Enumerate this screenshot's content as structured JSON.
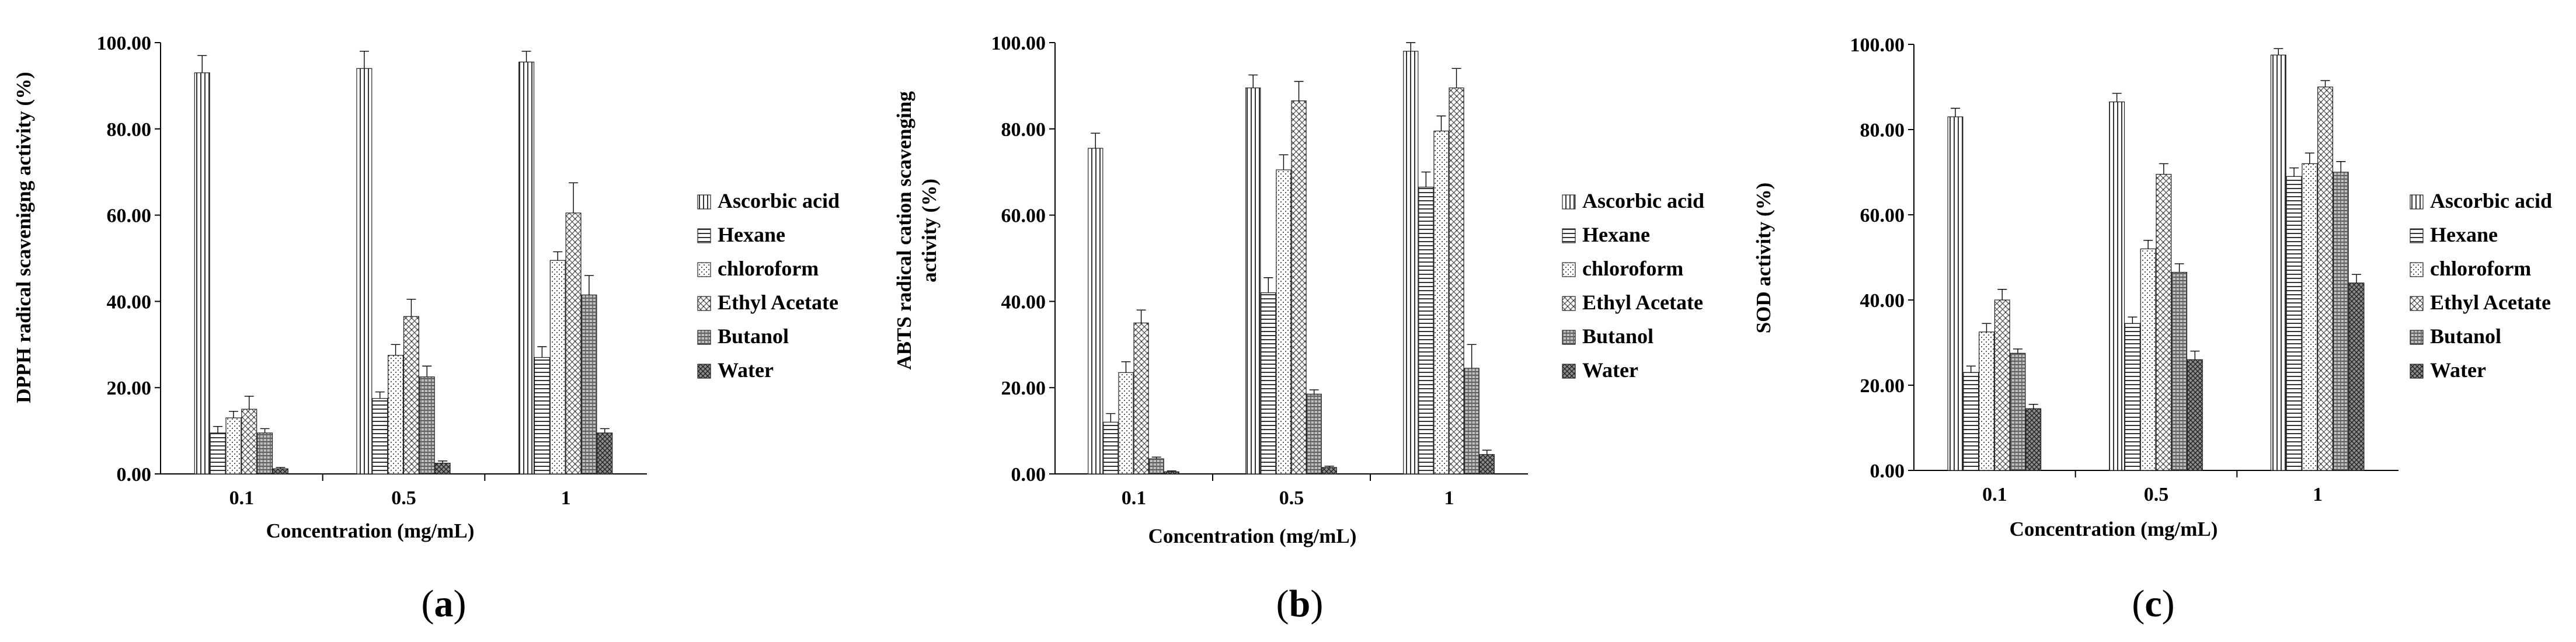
{
  "chart_data": [
    {
      "type": "bar",
      "panel": "a",
      "caption_letter": "a",
      "ylabel": "DPPH radical  scavenigng activity (%)",
      "xlabel": "Concentration (mg/mL)",
      "categories": [
        "0.1",
        "0.5",
        "1"
      ],
      "ylim": [
        0,
        100
      ],
      "yticks": [
        "0.00",
        "20.00",
        "40.00",
        "60.00",
        "80.00",
        "100.00"
      ],
      "legend_position": "right",
      "series": [
        {
          "name": "Ascorbic acid",
          "values": [
            93,
            94,
            95.5
          ],
          "errors": [
            4,
            4,
            2.5
          ]
        },
        {
          "name": "Hexane",
          "values": [
            9.5,
            17.5,
            27
          ],
          "errors": [
            1.5,
            1.5,
            2.5
          ]
        },
        {
          "name": "chloroform",
          "values": [
            13,
            27.5,
            49.5
          ],
          "errors": [
            1.5,
            2.5,
            2
          ]
        },
        {
          "name": "Ethyl Acetate",
          "values": [
            15,
            36.5,
            60.5
          ],
          "errors": [
            3,
            4,
            7
          ]
        },
        {
          "name": "Butanol",
          "values": [
            9.5,
            22.5,
            41.5
          ],
          "errors": [
            1,
            2.5,
            4.5
          ]
        },
        {
          "name": "Water",
          "values": [
            1.2,
            2.5,
            9.5
          ],
          "errors": [
            0.3,
            0.5,
            1
          ]
        }
      ]
    },
    {
      "type": "bar",
      "panel": "b",
      "caption_letter": "b",
      "ylabel_lines": [
        "ABTS radical cation scavenging",
        "activity (%)"
      ],
      "xlabel": "Concentration (mg/mL)",
      "categories": [
        "0.1",
        "0.5",
        "1"
      ],
      "ylim": [
        0,
        100
      ],
      "yticks": [
        "0.00",
        "20.00",
        "40.00",
        "60.00",
        "80.00",
        "100.00"
      ],
      "legend_position": "right",
      "series": [
        {
          "name": "Ascorbic acid",
          "values": [
            75.5,
            89.5,
            98
          ],
          "errors": [
            3.5,
            3,
            2
          ]
        },
        {
          "name": "Hexane",
          "values": [
            12,
            42,
            66.5
          ],
          "errors": [
            2,
            3.5,
            3.5
          ]
        },
        {
          "name": "chloroform",
          "values": [
            23.5,
            70.5,
            79.5
          ],
          "errors": [
            2.5,
            3.5,
            3.5
          ]
        },
        {
          "name": "Ethyl Acetate",
          "values": [
            35,
            86.5,
            89.5
          ],
          "errors": [
            3,
            4.5,
            4.5
          ]
        },
        {
          "name": "Butanol",
          "values": [
            3.5,
            18.5,
            24.5
          ],
          "errors": [
            0.4,
            1,
            5.5
          ]
        },
        {
          "name": "Water",
          "values": [
            0.5,
            1.5,
            4.5
          ],
          "errors": [
            0.2,
            0.3,
            1
          ]
        }
      ]
    },
    {
      "type": "bar",
      "panel": "c",
      "caption_letter": "c",
      "ylabel": "SOD activity (%)",
      "xlabel": "Concentration (mg/mL)",
      "categories": [
        "0.1",
        "0.5",
        "1"
      ],
      "ylim": [
        0,
        100
      ],
      "yticks": [
        "0.00",
        "20.00",
        "40.00",
        "60.00",
        "80.00",
        "100.00"
      ],
      "legend_position": "right",
      "series": [
        {
          "name": "Ascorbic acid",
          "values": [
            83,
            86.5,
            97.5
          ],
          "errors": [
            2,
            2,
            1.5
          ]
        },
        {
          "name": "Hexane",
          "values": [
            23,
            34.5,
            69
          ],
          "errors": [
            1.5,
            1.5,
            2
          ]
        },
        {
          "name": "chloroform",
          "values": [
            32.5,
            52,
            72
          ],
          "errors": [
            2,
            2,
            2.5
          ]
        },
        {
          "name": "Ethyl Acetate",
          "values": [
            40,
            69.5,
            90
          ],
          "errors": [
            2.5,
            2.5,
            1.5
          ]
        },
        {
          "name": "Butanol",
          "values": [
            27.5,
            46.5,
            70
          ],
          "errors": [
            1,
            2,
            2.5
          ]
        },
        {
          "name": "Water",
          "values": [
            14.5,
            26,
            44
          ],
          "errors": [
            1,
            2,
            2
          ]
        }
      ]
    }
  ]
}
